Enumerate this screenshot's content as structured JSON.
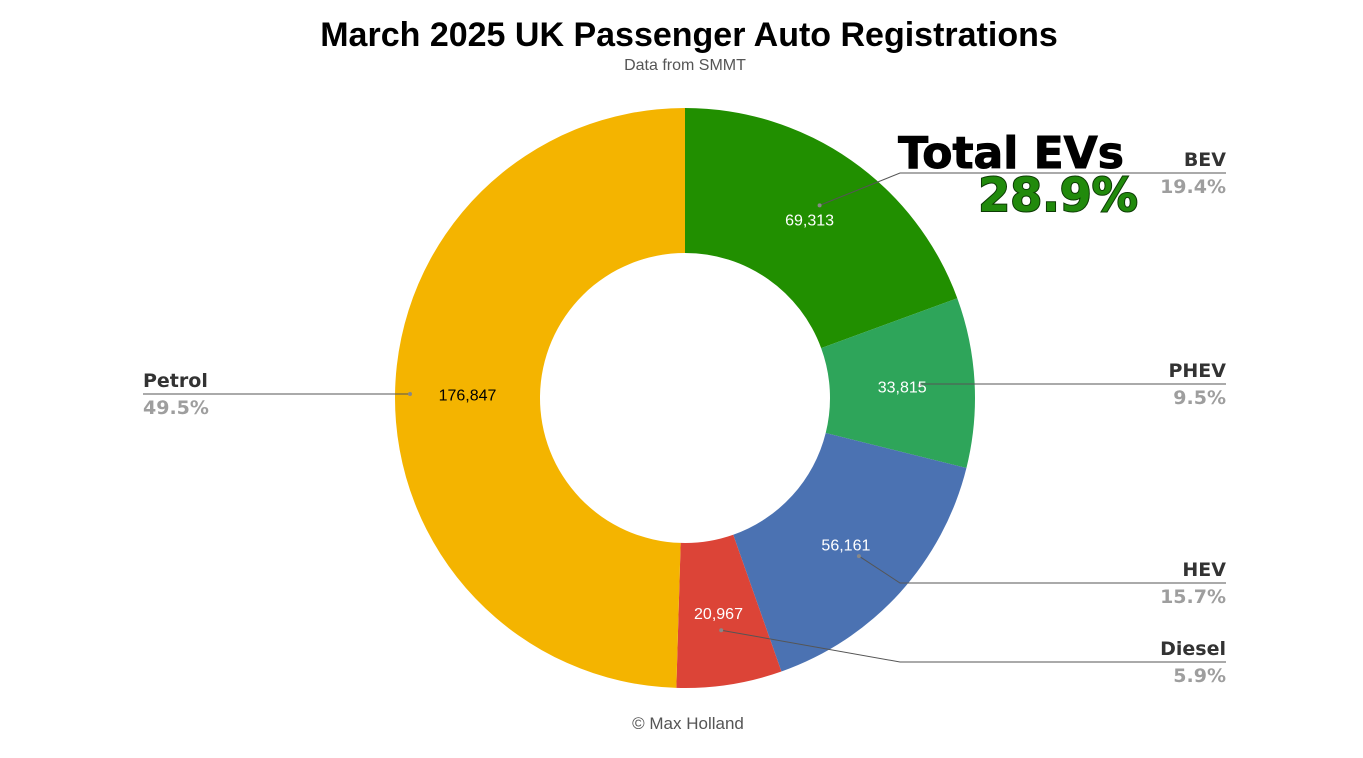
{
  "chart_data": {
    "type": "pie",
    "title": "March 2025 UK Passenger Auto Registrations",
    "subtitle": "Data from SMMT",
    "credit": "© Max Holland",
    "donut": true,
    "slices": [
      {
        "name": "BEV",
        "value": 69313,
        "value_label": "69,313",
        "percent": "19.4%",
        "color": "#218f00",
        "label_color": "#ffffff"
      },
      {
        "name": "PHEV",
        "value": 33815,
        "value_label": "33,815",
        "percent": "9.5%",
        "color": "#2ea55a",
        "label_color": "#ffffff"
      },
      {
        "name": "HEV",
        "value": 56161,
        "value_label": "56,161",
        "percent": "15.7%",
        "color": "#4b72b2",
        "label_color": "#ffffff"
      },
      {
        "name": "Diesel",
        "value": 20967,
        "value_label": "20,967",
        "percent": "5.9%",
        "color": "#dc4437",
        "label_color": "#ffffff"
      },
      {
        "name": "Petrol",
        "value": 176847,
        "value_label": "176,847",
        "percent": "49.5%",
        "color": "#f4b400",
        "label_color": "#000000"
      }
    ],
    "annotation": {
      "title": "Total EVs",
      "value": "28.9%",
      "color": "#218a0c"
    }
  }
}
